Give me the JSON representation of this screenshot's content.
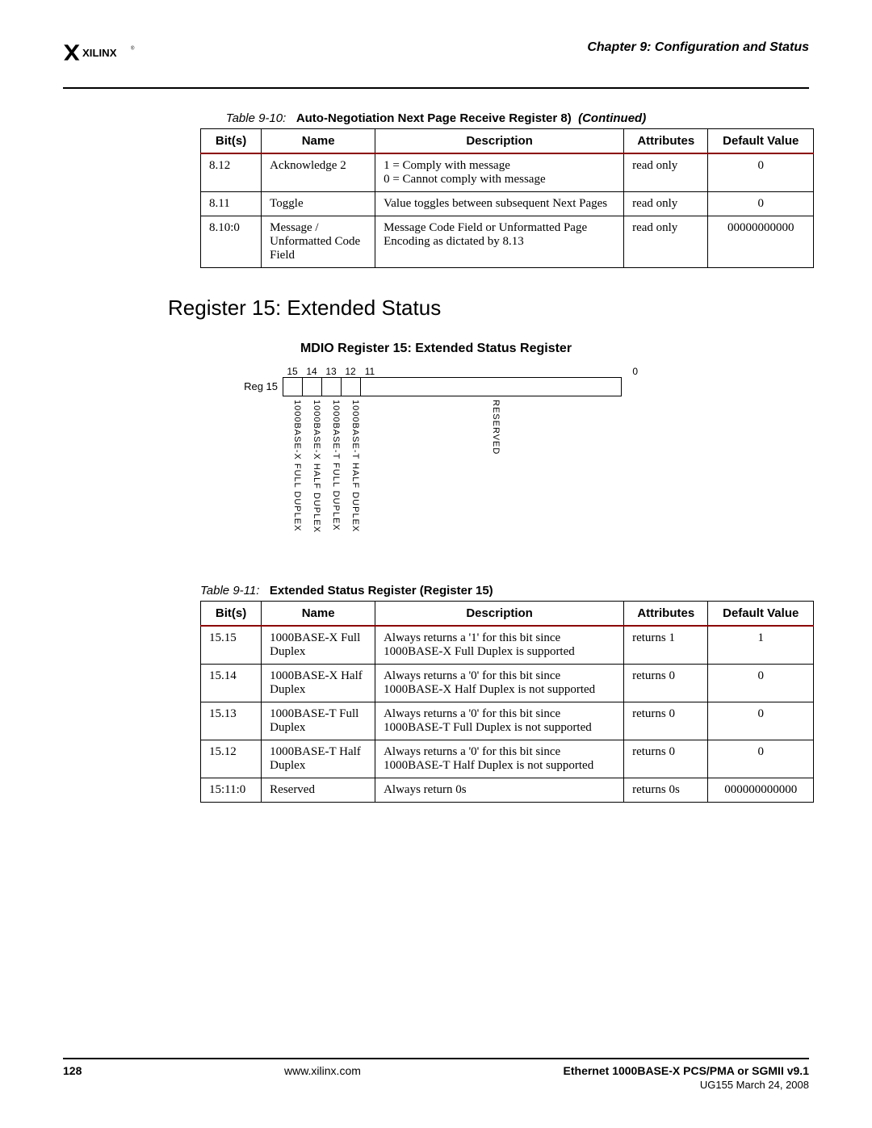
{
  "header": {
    "brand": "XILINX",
    "chapter": "Chapter 9:  Configuration and Status"
  },
  "table1": {
    "caption_label": "Table 9-10:",
    "caption_title": "Auto-Negotiation Next Page Receive Register 8)",
    "caption_cont": "(Continued)",
    "columns": {
      "bits": "Bit(s)",
      "name": "Name",
      "desc": "Description",
      "attr": "Attributes",
      "def": "Default Value"
    },
    "rows": [
      {
        "bits": "8.12",
        "name": "Acknowledge 2",
        "desc": "1 = Comply with message\n0 = Cannot comply with message",
        "attr": "read only",
        "def": "0"
      },
      {
        "bits": "8.11",
        "name": "Toggle",
        "desc": "Value toggles between subsequent Next Pages",
        "attr": "read only",
        "def": "0"
      },
      {
        "bits": "8.10:0",
        "name": "Message / Unformatted Code Field",
        "desc": "Message Code Field or Unformatted Page Encoding as dictated by 8.13",
        "attr": "read only",
        "def": "00000000000"
      }
    ]
  },
  "section1": {
    "heading": "Register 15: Extended Status",
    "diagram_title": "MDIO Register 15: Extended Status Register",
    "reg_label": "Reg 15",
    "bit_numbers": [
      "15",
      "14",
      "13",
      "12",
      "11"
    ],
    "bit_zero": "0",
    "bit_labels": [
      "1000BASE-X FULL DUPLEX",
      "1000BASE-X HALF DUPLEX",
      "1000BASE-T FULL DUPLEX",
      "1000BASE-T HALF DUPLEX"
    ],
    "reserved_label": "RESERVED"
  },
  "table2": {
    "caption_label": "Table 9-11:",
    "caption_title": "Extended Status Register (Register 15)",
    "columns": {
      "bits": "Bit(s)",
      "name": "Name",
      "desc": "Description",
      "attr": "Attributes",
      "def": "Default Value"
    },
    "rows": [
      {
        "bits": "15.15",
        "name": "1000BASE-X Full Duplex",
        "desc": "Always returns a '1' for this bit since 1000BASE-X Full Duplex is supported",
        "attr": "returns 1",
        "def": "1"
      },
      {
        "bits": "15.14",
        "name": "1000BASE-X Half Duplex",
        "desc": "Always returns a '0' for this bit since 1000BASE-X Half Duplex is not supported",
        "attr": "returns 0",
        "def": "0"
      },
      {
        "bits": "15.13",
        "name": "1000BASE-T Full Duplex",
        "desc": "Always returns a '0' for this bit since 1000BASE-T Full Duplex is not supported",
        "attr": "returns 0",
        "def": "0"
      },
      {
        "bits": "15.12",
        "name": "1000BASE-T Half Duplex",
        "desc": "Always returns a '0' for this bit since 1000BASE-T Half Duplex is not supported",
        "attr": "returns 0",
        "def": "0"
      },
      {
        "bits": "15:11:0",
        "name": "Reserved",
        "desc": "Always return 0s",
        "attr": "returns 0s",
        "def": "000000000000"
      }
    ]
  },
  "footer": {
    "page_num": "128",
    "url": "www.xilinx.com",
    "doc_title": "Ethernet 1000BASE-X PCS/PMA or SGMII v9.1",
    "doc_sub": "UG155 March 24, 2008"
  },
  "colors": {
    "header_rule": "#8b0000"
  }
}
